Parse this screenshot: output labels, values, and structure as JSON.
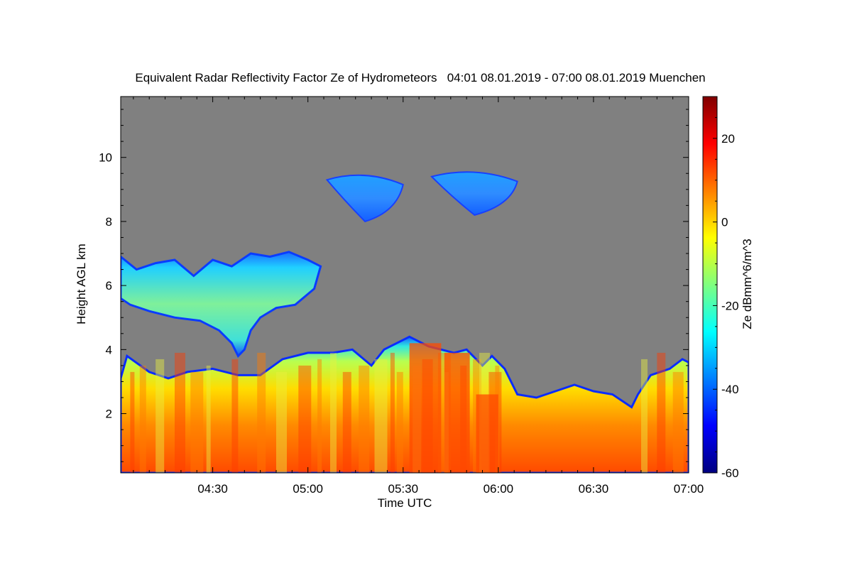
{
  "chart_data": {
    "type": "heatmap",
    "title": "Equivalent Radar Reflectivity Factor Ze of Hydrometeors   04:01 08.01.2019 - 07:00 08.01.2019 Muenchen",
    "xlabel": "Time UTC",
    "ylabel": "Height AGL km",
    "xlim_minutes_utc": [
      241,
      420
    ],
    "ylim": [
      0.15,
      11.9
    ],
    "x_ticks": [
      {
        "minute": 270,
        "label": "04:30"
      },
      {
        "minute": 300,
        "label": "05:00"
      },
      {
        "minute": 330,
        "label": "05:30"
      },
      {
        "minute": 360,
        "label": "06:00"
      },
      {
        "minute": 390,
        "label": "06:30"
      },
      {
        "minute": 420,
        "label": "07:00"
      }
    ],
    "y_ticks": [
      {
        "value": 2,
        "label": "2"
      },
      {
        "value": 4,
        "label": "4"
      },
      {
        "value": 6,
        "label": "6"
      },
      {
        "value": 8,
        "label": "8"
      },
      {
        "value": 10,
        "label": "10"
      }
    ],
    "colorbar": {
      "label": "Ze dBmm^6/m^3",
      "range": [
        -60,
        30
      ],
      "ticks": [
        {
          "value": 20,
          "label": "20"
        },
        {
          "value": 0,
          "label": "0"
        },
        {
          "value": -20,
          "label": "-20"
        },
        {
          "value": -40,
          "label": "-40"
        },
        {
          "value": -60,
          "label": "-60"
        }
      ],
      "colormap": [
        "#00007f",
        "#0000ff",
        "#007fff",
        "#00ffff",
        "#7fff7f",
        "#ffff00",
        "#ff7f00",
        "#ff0000",
        "#7f0000"
      ]
    },
    "no_echo_color": "#808080",
    "lower_layer": {
      "value_range_dbz": [
        -40,
        15
      ],
      "top_km_by_minute": [
        [
          241,
          3.1
        ],
        [
          243,
          3.8
        ],
        [
          250,
          3.3
        ],
        [
          256,
          3.1
        ],
        [
          262,
          3.3
        ],
        [
          270,
          3.4
        ],
        [
          278,
          3.2
        ],
        [
          285,
          3.2
        ],
        [
          292,
          3.7
        ],
        [
          300,
          3.9
        ],
        [
          308,
          3.9
        ],
        [
          314,
          4.0
        ],
        [
          320,
          3.5
        ],
        [
          324,
          4.0
        ],
        [
          332,
          4.4
        ],
        [
          338,
          4.1
        ],
        [
          346,
          3.9
        ],
        [
          350,
          4.0
        ],
        [
          355,
          3.5
        ],
        [
          358,
          3.8
        ],
        [
          362,
          3.4
        ],
        [
          366,
          2.6
        ],
        [
          372,
          2.5
        ],
        [
          378,
          2.7
        ],
        [
          384,
          2.9
        ],
        [
          390,
          2.7
        ],
        [
          396,
          2.6
        ],
        [
          402,
          2.2
        ],
        [
          404,
          2.6
        ],
        [
          408,
          3.2
        ],
        [
          414,
          3.4
        ],
        [
          418,
          3.7
        ],
        [
          420,
          3.6
        ]
      ]
    },
    "mid_cloud": {
      "value_range_dbz": [
        -35,
        -10
      ],
      "minutes": [
        241,
        305
      ],
      "height_km": [
        3.8,
        7.1
      ]
    },
    "upper_clouds": [
      {
        "minutes": [
          306,
          330
        ],
        "height_km": [
          8.0,
          9.4
        ],
        "value_range_dbz": [
          -40,
          -25
        ]
      },
      {
        "minutes": [
          339,
          366
        ],
        "height_km": [
          8.2,
          9.5
        ],
        "value_range_dbz": [
          -40,
          -25
        ]
      }
    ]
  }
}
